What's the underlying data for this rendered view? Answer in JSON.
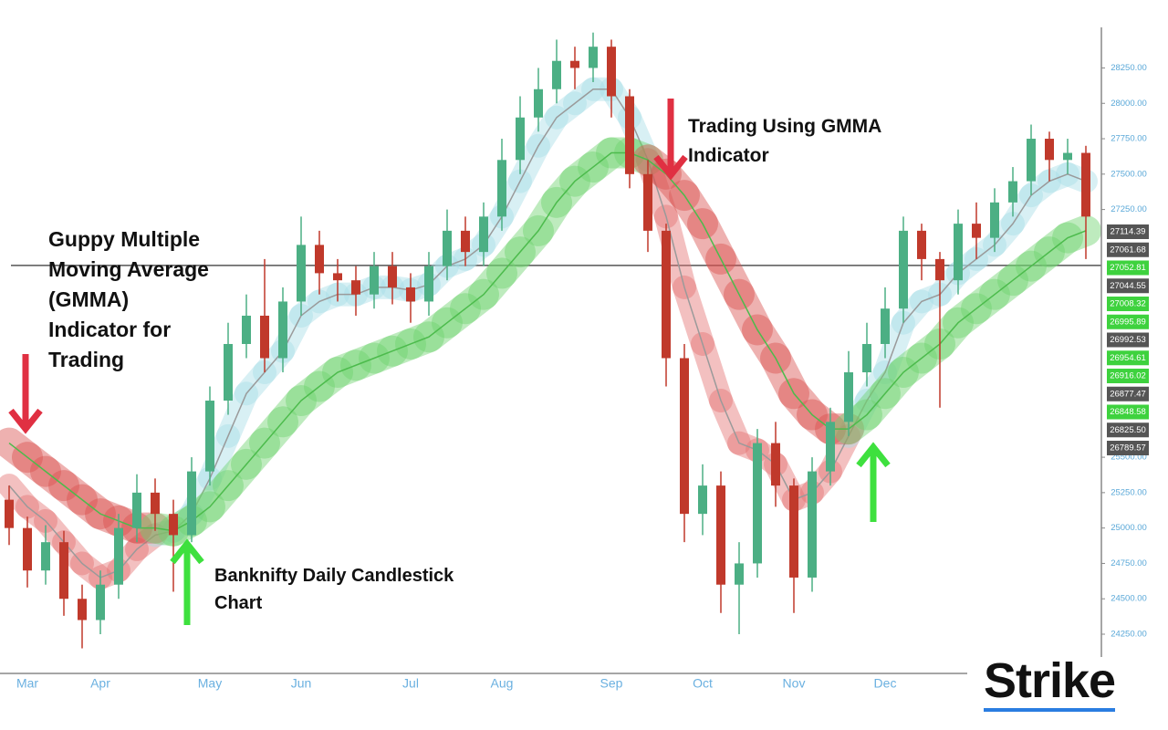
{
  "chart_data": {
    "type": "candlestick",
    "title": "Guppy Multiple Moving Average (GMMA) Indicator for Trading",
    "annotations": [
      "Trading Using GMMA Indicator",
      "Banknifty Daily Candlestick Chart"
    ],
    "logo": "Strike",
    "categories": [
      null,
      "Mar",
      null,
      null,
      null,
      "Apr",
      null,
      null,
      null,
      null,
      null,
      "May",
      null,
      null,
      null,
      null,
      "Jun",
      null,
      null,
      null,
      null,
      null,
      "Jul",
      null,
      null,
      null,
      null,
      "Aug",
      null,
      null,
      null,
      null,
      null,
      "Sep",
      null,
      null,
      null,
      null,
      "Oct",
      null,
      null,
      null,
      null,
      "Nov",
      null,
      null,
      null,
      null,
      "Dec",
      null,
      null,
      null,
      null,
      null,
      null,
      null,
      null,
      null,
      null,
      null
    ],
    "open": [
      25200,
      25000,
      24700,
      24900,
      24500,
      24350,
      24600,
      25000,
      25250,
      25100,
      24950,
      25400,
      25900,
      26300,
      26500,
      26200,
      26600,
      27000,
      26800,
      26750,
      26650,
      26850,
      26700,
      26600,
      26850,
      27100,
      26950,
      27200,
      27600,
      27900,
      28100,
      28300,
      28250,
      28400,
      28050,
      27500,
      27100,
      26200,
      25100,
      25300,
      24600,
      24750,
      25600,
      25300,
      24650,
      25400,
      25750,
      26100,
      26300,
      26550,
      27100,
      26900,
      26750,
      27150,
      27050,
      27300,
      27450,
      27750,
      27600,
      27650
    ],
    "high": [
      25300,
      25080,
      25020,
      24980,
      24600,
      24700,
      25100,
      25380,
      25350,
      25200,
      25500,
      26000,
      26450,
      26650,
      26900,
      26700,
      27200,
      27100,
      26900,
      26850,
      26950,
      26950,
      26800,
      26950,
      27250,
      27200,
      27300,
      27750,
      28050,
      28250,
      28450,
      28400,
      28500,
      28450,
      28100,
      27600,
      27150,
      26300,
      25450,
      25400,
      24900,
      25700,
      25750,
      25350,
      25500,
      25850,
      26250,
      26450,
      26700,
      27200,
      27150,
      26950,
      27250,
      27300,
      27400,
      27550,
      27850,
      27800,
      27750,
      27700
    ],
    "low": [
      24880,
      24580,
      24600,
      24380,
      24150,
      24250,
      24500,
      24900,
      24980,
      24550,
      24900,
      25300,
      25800,
      26200,
      26100,
      26100,
      26500,
      26650,
      26600,
      26500,
      26550,
      26580,
      26450,
      26500,
      26750,
      26850,
      26850,
      27100,
      27500,
      27800,
      28000,
      28100,
      28150,
      27900,
      27400,
      26950,
      26000,
      24900,
      24950,
      24400,
      24250,
      24650,
      25150,
      24400,
      24550,
      25300,
      25650,
      26000,
      26200,
      26450,
      26750,
      25850,
      26650,
      26900,
      26950,
      27200,
      27350,
      27450,
      27500,
      26900
    ],
    "close": [
      25000,
      24700,
      24900,
      24500,
      24350,
      24600,
      25000,
      25250,
      25100,
      24950,
      25400,
      25900,
      26300,
      26500,
      26200,
      26600,
      27000,
      26800,
      26750,
      26650,
      26850,
      26700,
      26600,
      26850,
      27100,
      26950,
      27200,
      27600,
      27900,
      28100,
      28300,
      28250,
      28400,
      28050,
      27500,
      27100,
      26200,
      25100,
      25300,
      24600,
      24750,
      25600,
      25300,
      24650,
      25400,
      25750,
      26100,
      26300,
      26550,
      27100,
      26900,
      26750,
      27150,
      27050,
      27300,
      27450,
      27750,
      27600,
      27650,
      27200
    ],
    "up_color": "#4caf84",
    "down_color": "#c0392b",
    "series": [
      {
        "up_color": "#a8dde6",
        "down_color": "#e57373",
        "values": [
          25300,
          25150,
          25050,
          24900,
          24750,
          24650,
          24700,
          24850,
          24950,
          24980,
          25100,
          25350,
          25650,
          25950,
          26100,
          26250,
          26500,
          26600,
          26650,
          26650,
          26700,
          26700,
          26680,
          26720,
          26850,
          26900,
          27000,
          27200,
          27450,
          27700,
          27900,
          28000,
          28100,
          28100,
          27900,
          27600,
          27200,
          26700,
          26300,
          25900,
          25600,
          25550,
          25450,
          25200,
          25250,
          25400,
          25650,
          25900,
          26100,
          26450,
          26600,
          26650,
          26800,
          26900,
          27000,
          27150,
          27350,
          27450,
          27500,
          27450
        ]
      },
      {
        "up_color": "#6fd36f",
        "down_color": "#d9534f",
        "values": [
          25600,
          25500,
          25400,
          25300,
          25200,
          25100,
          25050,
          25000,
          25000,
          24980,
          25050,
          25150,
          25300,
          25450,
          25600,
          25750,
          25900,
          26000,
          26100,
          26150,
          26200,
          26250,
          26300,
          26350,
          26450,
          26550,
          26650,
          26800,
          26950,
          27100,
          27300,
          27450,
          27550,
          27650,
          27650,
          27600,
          27500,
          27350,
          27150,
          26900,
          26650,
          26400,
          26200,
          25950,
          25800,
          25700,
          25700,
          25800,
          25950,
          26100,
          26200,
          26300,
          26450,
          26550,
          26650,
          26750,
          26850,
          26950,
          27050,
          27100
        ]
      }
    ],
    "reference_line": 26855,
    "ylim": [
      23960,
      28730
    ],
    "yticks": [
      {
        "value": 24250,
        "label": "24250.00"
      },
      {
        "value": 24500,
        "label": "24500.00"
      },
      {
        "value": 24750,
        "label": "24750.00"
      },
      {
        "value": 25000,
        "label": "25000.00"
      },
      {
        "value": 25250,
        "label": "25250.00"
      },
      {
        "value": 25500,
        "label": "25500.00"
      },
      {
        "value": 27250,
        "label": "27250.00"
      },
      {
        "value": 27500,
        "label": "27500.00"
      },
      {
        "value": 27750,
        "label": "27750.00"
      },
      {
        "value": 28000,
        "label": "28000.00"
      },
      {
        "value": 28250,
        "label": "28250.00"
      }
    ],
    "price_labels": [
      {
        "value": 27114.39,
        "color": "#555555"
      },
      {
        "value": 27061.68,
        "color": "#555555"
      },
      {
        "value": 27052.81,
        "color": "#3ed23e"
      },
      {
        "value": 27044.55,
        "color": "#555555"
      },
      {
        "value": 27008.32,
        "color": "#3ed23e"
      },
      {
        "value": 26995.89,
        "color": "#3ed23e"
      },
      {
        "value": 26992.53,
        "color": "#555555"
      },
      {
        "value": 26954.61,
        "color": "#3ed23e"
      },
      {
        "value": 26916.02,
        "color": "#3ed23e"
      },
      {
        "value": 26877.47,
        "color": "#555555"
      },
      {
        "value": 26848.58,
        "color": "#3ed23e"
      },
      {
        "value": 26825.5,
        "label": "26825.50",
        "color": "#555555"
      },
      {
        "value": 26789.57,
        "color": "#555555"
      }
    ]
  }
}
